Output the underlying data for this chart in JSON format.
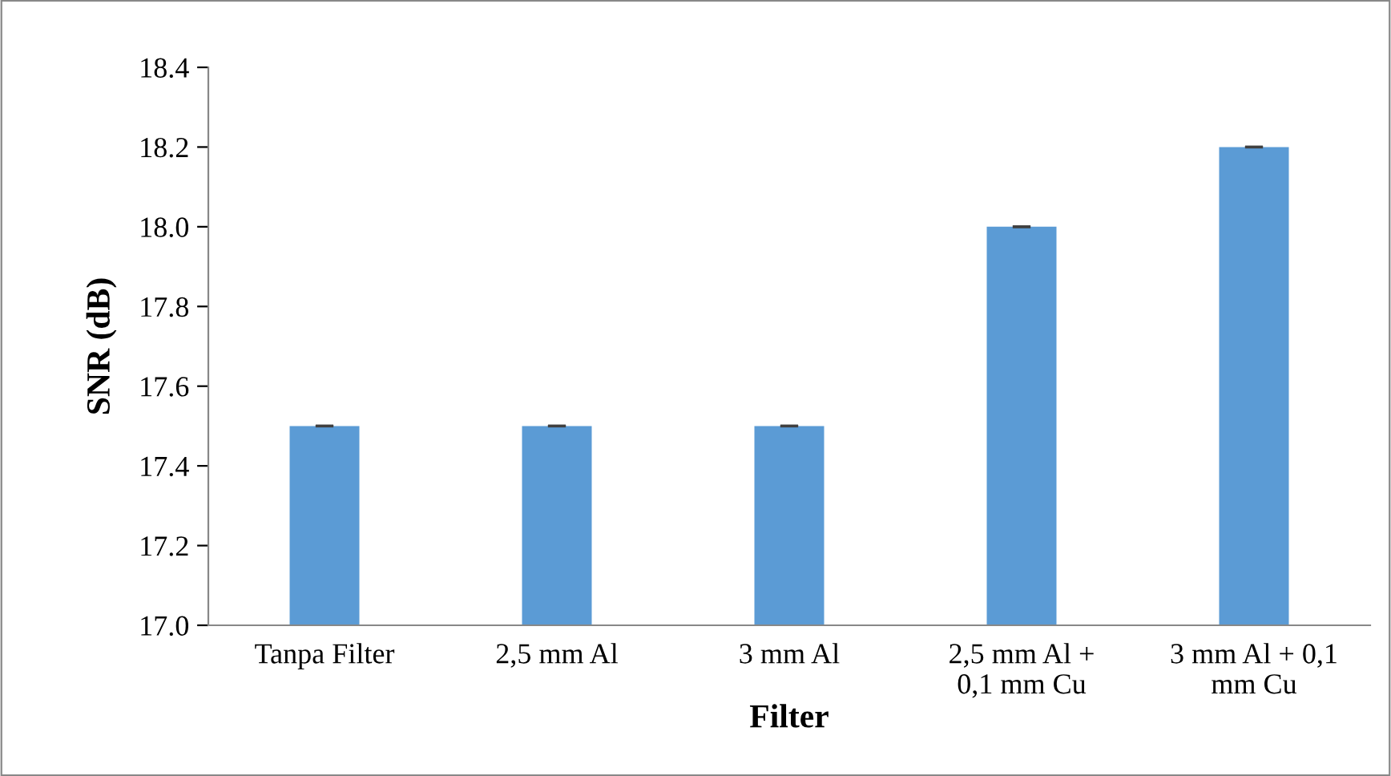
{
  "chart_data": {
    "type": "bar",
    "xlabel": "Filter",
    "ylabel": "SNR (dB)",
    "categories": [
      "Tanpa Filter",
      "2,5 mm Al",
      "3 mm Al",
      "2,5 mm Al +\n0,1 mm Cu",
      "3 mm Al + 0,1\nmm Cu"
    ],
    "values": [
      17.5,
      17.5,
      17.5,
      18.0,
      18.2
    ],
    "errors": [
      0,
      0,
      0,
      0,
      0
    ],
    "color": "#5b9bd5",
    "ylim": [
      17.0,
      18.4
    ],
    "yticks": [
      {
        "value": 17.0,
        "label": "17.0"
      },
      {
        "value": 17.2,
        "label": "17.2"
      },
      {
        "value": 17.4,
        "label": "17.4"
      },
      {
        "value": 17.6,
        "label": "17.6"
      },
      {
        "value": 17.8,
        "label": "17.8"
      },
      {
        "value": 18.0,
        "label": "18.0"
      },
      {
        "value": 18.2,
        "label": "18.2"
      },
      {
        "value": 18.4,
        "label": "18.4"
      }
    ],
    "grid": false,
    "legend": false
  }
}
